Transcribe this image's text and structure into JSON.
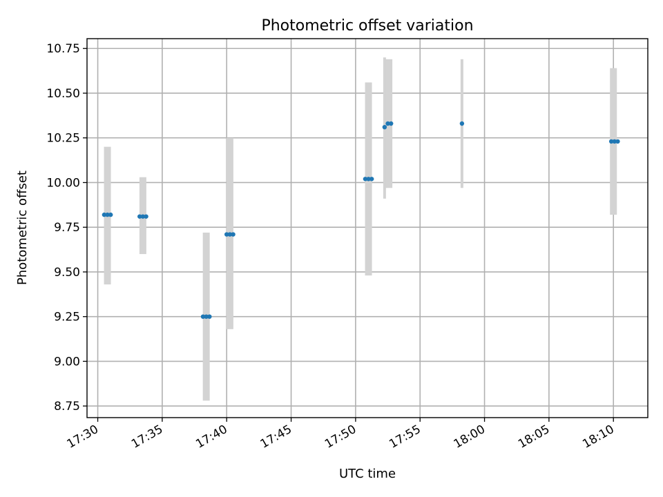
{
  "chart_data": {
    "type": "scatter",
    "title": "Photometric offset variation",
    "xlabel": "UTC time",
    "ylabel": "Photometric offset",
    "x_axis_type": "time",
    "x_ticks": [
      "17:30",
      "17:35",
      "17:40",
      "17:45",
      "17:50",
      "17:55",
      "18:00",
      "18:05",
      "18:10"
    ],
    "xlim": [
      "17:29:10",
      "18:12:40"
    ],
    "y_ticks": [
      "8.75",
      "9.00",
      "9.25",
      "9.50",
      "9.75",
      "10.00",
      "10.25",
      "10.50",
      "10.75"
    ],
    "ylim": [
      8.685,
      10.805
    ],
    "grid": true,
    "colors": {
      "points": "#1f77b4",
      "error_bars": "#d3d3d3"
    },
    "error_bars": [
      {
        "x": "17:30:45",
        "low": 9.43,
        "high": 10.2
      },
      {
        "x": "17:33:30",
        "low": 9.6,
        "high": 10.03
      },
      {
        "x": "17:38:25",
        "low": 8.78,
        "high": 9.72
      },
      {
        "x": "17:40:15",
        "low": 9.18,
        "high": 10.25
      },
      {
        "x": "17:51:00",
        "low": 9.48,
        "high": 10.56
      },
      {
        "x": "17:52:15",
        "low": 9.91,
        "high": 10.7
      },
      {
        "x": "17:52:35",
        "low": 9.97,
        "high": 10.69
      },
      {
        "x": "17:58:15",
        "low": 9.97,
        "high": 10.69
      },
      {
        "x": "18:10:00",
        "low": 9.82,
        "high": 10.64
      }
    ],
    "series": [
      {
        "points": [
          {
            "x": "17:30:30",
            "y": 9.82
          },
          {
            "x": "17:30:45",
            "y": 9.82
          },
          {
            "x": "17:31:00",
            "y": 9.82
          },
          {
            "x": "17:33:15",
            "y": 9.81
          },
          {
            "x": "17:33:30",
            "y": 9.81
          },
          {
            "x": "17:33:45",
            "y": 9.81
          },
          {
            "x": "17:38:10",
            "y": 9.25
          },
          {
            "x": "17:38:25",
            "y": 9.25
          },
          {
            "x": "17:38:40",
            "y": 9.25
          },
          {
            "x": "17:40:00",
            "y": 9.71
          },
          {
            "x": "17:40:15",
            "y": 9.71
          },
          {
            "x": "17:40:30",
            "y": 9.71
          },
          {
            "x": "17:50:45",
            "y": 10.02
          },
          {
            "x": "17:51:00",
            "y": 10.02
          },
          {
            "x": "17:51:15",
            "y": 10.02
          },
          {
            "x": "17:52:15",
            "y": 10.31
          },
          {
            "x": "17:52:30",
            "y": 10.33
          },
          {
            "x": "17:52:45",
            "y": 10.33
          },
          {
            "x": "17:58:15",
            "y": 10.33
          },
          {
            "x": "18:09:50",
            "y": 10.23
          },
          {
            "x": "18:10:05",
            "y": 10.23
          },
          {
            "x": "18:10:20",
            "y": 10.23
          }
        ]
      }
    ]
  }
}
